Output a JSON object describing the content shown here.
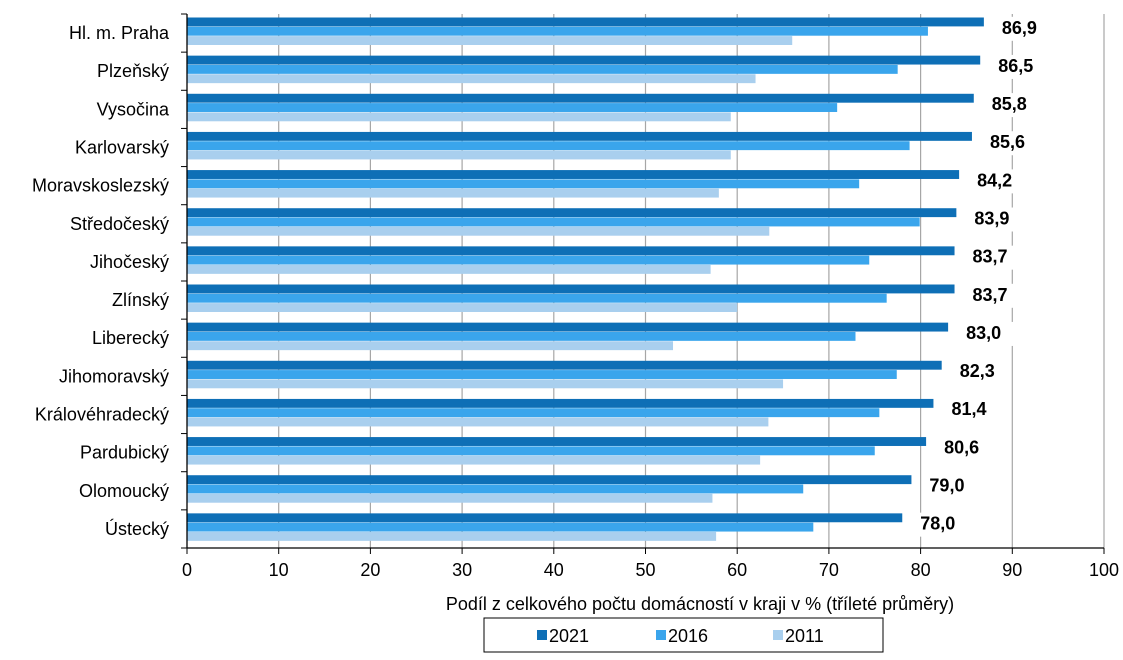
{
  "chart_data": {
    "type": "bar",
    "orientation": "horizontal",
    "categories": [
      "Hl. m. Praha",
      "Plzeňský",
      "Vysočina",
      "Karlovarský",
      "Moravskoslezský",
      "Středočeský",
      "Jihočeský",
      "Zlínský",
      "Liberecký",
      "Jihomoravský",
      "Královéhradecký",
      "Pardubický",
      "Olomoucký",
      "Ústecký"
    ],
    "series": [
      {
        "name": "2021",
        "color": "#0e6fb6",
        "values": [
          86.9,
          86.5,
          85.8,
          85.6,
          84.2,
          83.9,
          83.7,
          83.7,
          83.0,
          82.3,
          81.4,
          80.6,
          79.0,
          78.0
        ],
        "data_labels": [
          "86,9",
          "86,5",
          "85,8",
          "85,6",
          "84,2",
          "83,9",
          "83,7",
          "83,7",
          "83,0",
          "82,3",
          "81,4",
          "80,6",
          "79,0",
          "78,0"
        ]
      },
      {
        "name": "2016",
        "color": "#3aa5ec",
        "values": [
          80.8,
          77.5,
          70.9,
          78.8,
          73.3,
          79.9,
          74.4,
          76.3,
          72.9,
          77.4,
          75.5,
          75.0,
          67.2,
          68.3
        ]
      },
      {
        "name": "2011",
        "color": "#a9cfee",
        "values": [
          66.0,
          62.0,
          59.3,
          59.3,
          58.0,
          63.5,
          57.1,
          60.0,
          53.0,
          65.0,
          63.4,
          62.5,
          57.3,
          57.7
        ]
      }
    ],
    "x_ticks": [
      "0",
      "10",
      "20",
      "30",
      "40",
      "50",
      "60",
      "70",
      "80",
      "90",
      "100"
    ],
    "xlim": [
      0,
      100
    ],
    "xlabel": "Podíl z celkového počtu domácností v kraji v % (tříleté průměry)",
    "ylabel": "",
    "grid": "vertical",
    "legend_position": "bottom"
  }
}
